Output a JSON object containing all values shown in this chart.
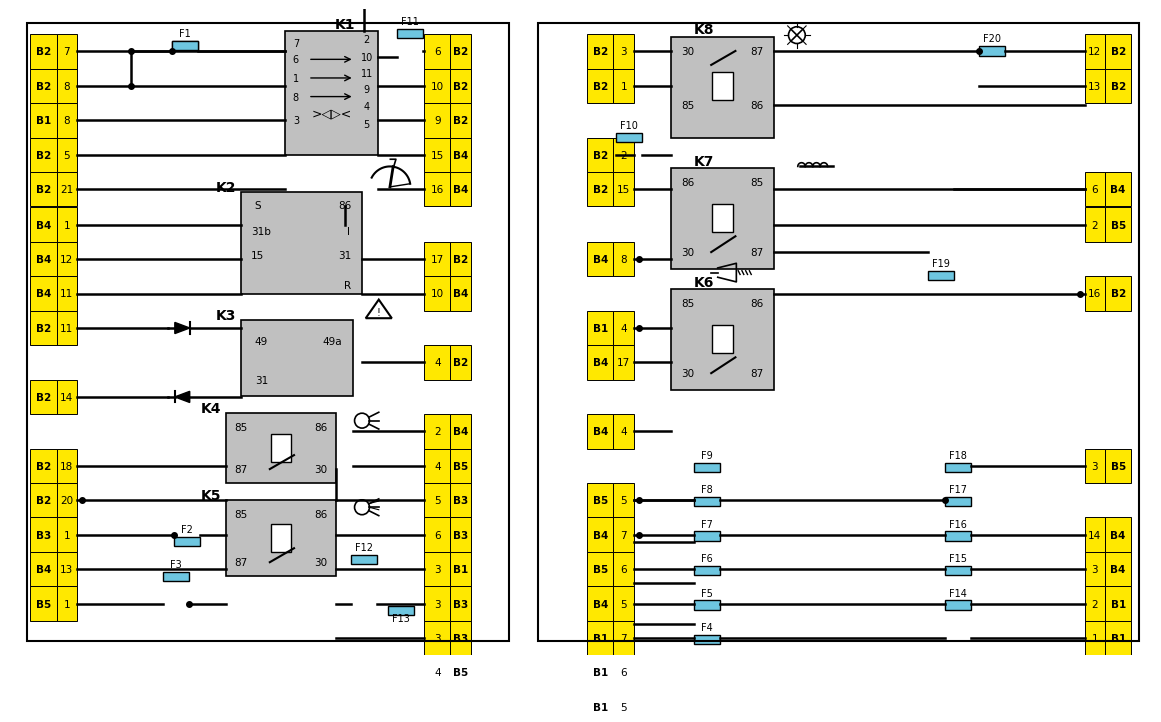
{
  "bg_color": "#ffffff",
  "yellow_color": "#FFE800",
  "fuse_color": "#6EC6E0",
  "relay_bg": "#C0C0C0",
  "line_color": "#000000",
  "left_pins": [
    [
      "В2",
      "7"
    ],
    [
      "В2",
      "8"
    ],
    [
      "В1",
      "8"
    ],
    [
      "В2",
      "5"
    ],
    [
      "В2",
      "21"
    ],
    [
      "В4",
      "1"
    ],
    [
      "В4",
      "12"
    ],
    [
      "В4",
      "11"
    ],
    [
      "В2",
      "11"
    ],
    [
      "В2",
      "14"
    ],
    [
      "В2",
      "18"
    ],
    [
      "В2",
      "20"
    ],
    [
      "В3",
      "1"
    ],
    [
      "В4",
      "13"
    ],
    [
      "В5",
      "1"
    ]
  ],
  "mid_right_pins": [
    [
      "6",
      "В2"
    ],
    [
      "10",
      "В2"
    ],
    [
      "9",
      "В2"
    ],
    [
      "15",
      "В4"
    ],
    [
      "16",
      "В4"
    ],
    [
      "17",
      "В2"
    ],
    [
      "10",
      "В4"
    ],
    [
      "4",
      "В2"
    ],
    [
      "2",
      "В4"
    ],
    [
      "4",
      "В5"
    ],
    [
      "5",
      "В3"
    ],
    [
      "6",
      "В3"
    ],
    [
      "3",
      "В1"
    ],
    [
      "3",
      "В3"
    ],
    [
      "3",
      "В3"
    ],
    [
      "4",
      "В5"
    ]
  ],
  "right_inner_pins": [
    [
      "В2",
      "3"
    ],
    [
      "В2",
      "1"
    ],
    [
      "В2",
      "2"
    ],
    [
      "В2",
      "15"
    ],
    [
      "В4",
      "8"
    ],
    [
      "В1",
      "4"
    ],
    [
      "В4",
      "17"
    ],
    [
      "В4",
      "4"
    ],
    [
      "В5",
      "5"
    ],
    [
      "В4",
      "7"
    ],
    [
      "В5",
      "6"
    ],
    [
      "В4",
      "5"
    ],
    [
      "В1",
      "7"
    ],
    [
      "В1",
      "6"
    ],
    [
      "В1",
      "5"
    ]
  ],
  "right_outer_pins": [
    [
      "12",
      "В2"
    ],
    [
      "13",
      "В2"
    ],
    [
      "6",
      "В4"
    ],
    [
      "2",
      "В5"
    ],
    [
      "16",
      "В2"
    ],
    [
      "3",
      "В5"
    ],
    [
      "14",
      "В4"
    ],
    [
      "3",
      "В4"
    ],
    [
      "2",
      "В1"
    ],
    [
      "1",
      "В1"
    ]
  ]
}
